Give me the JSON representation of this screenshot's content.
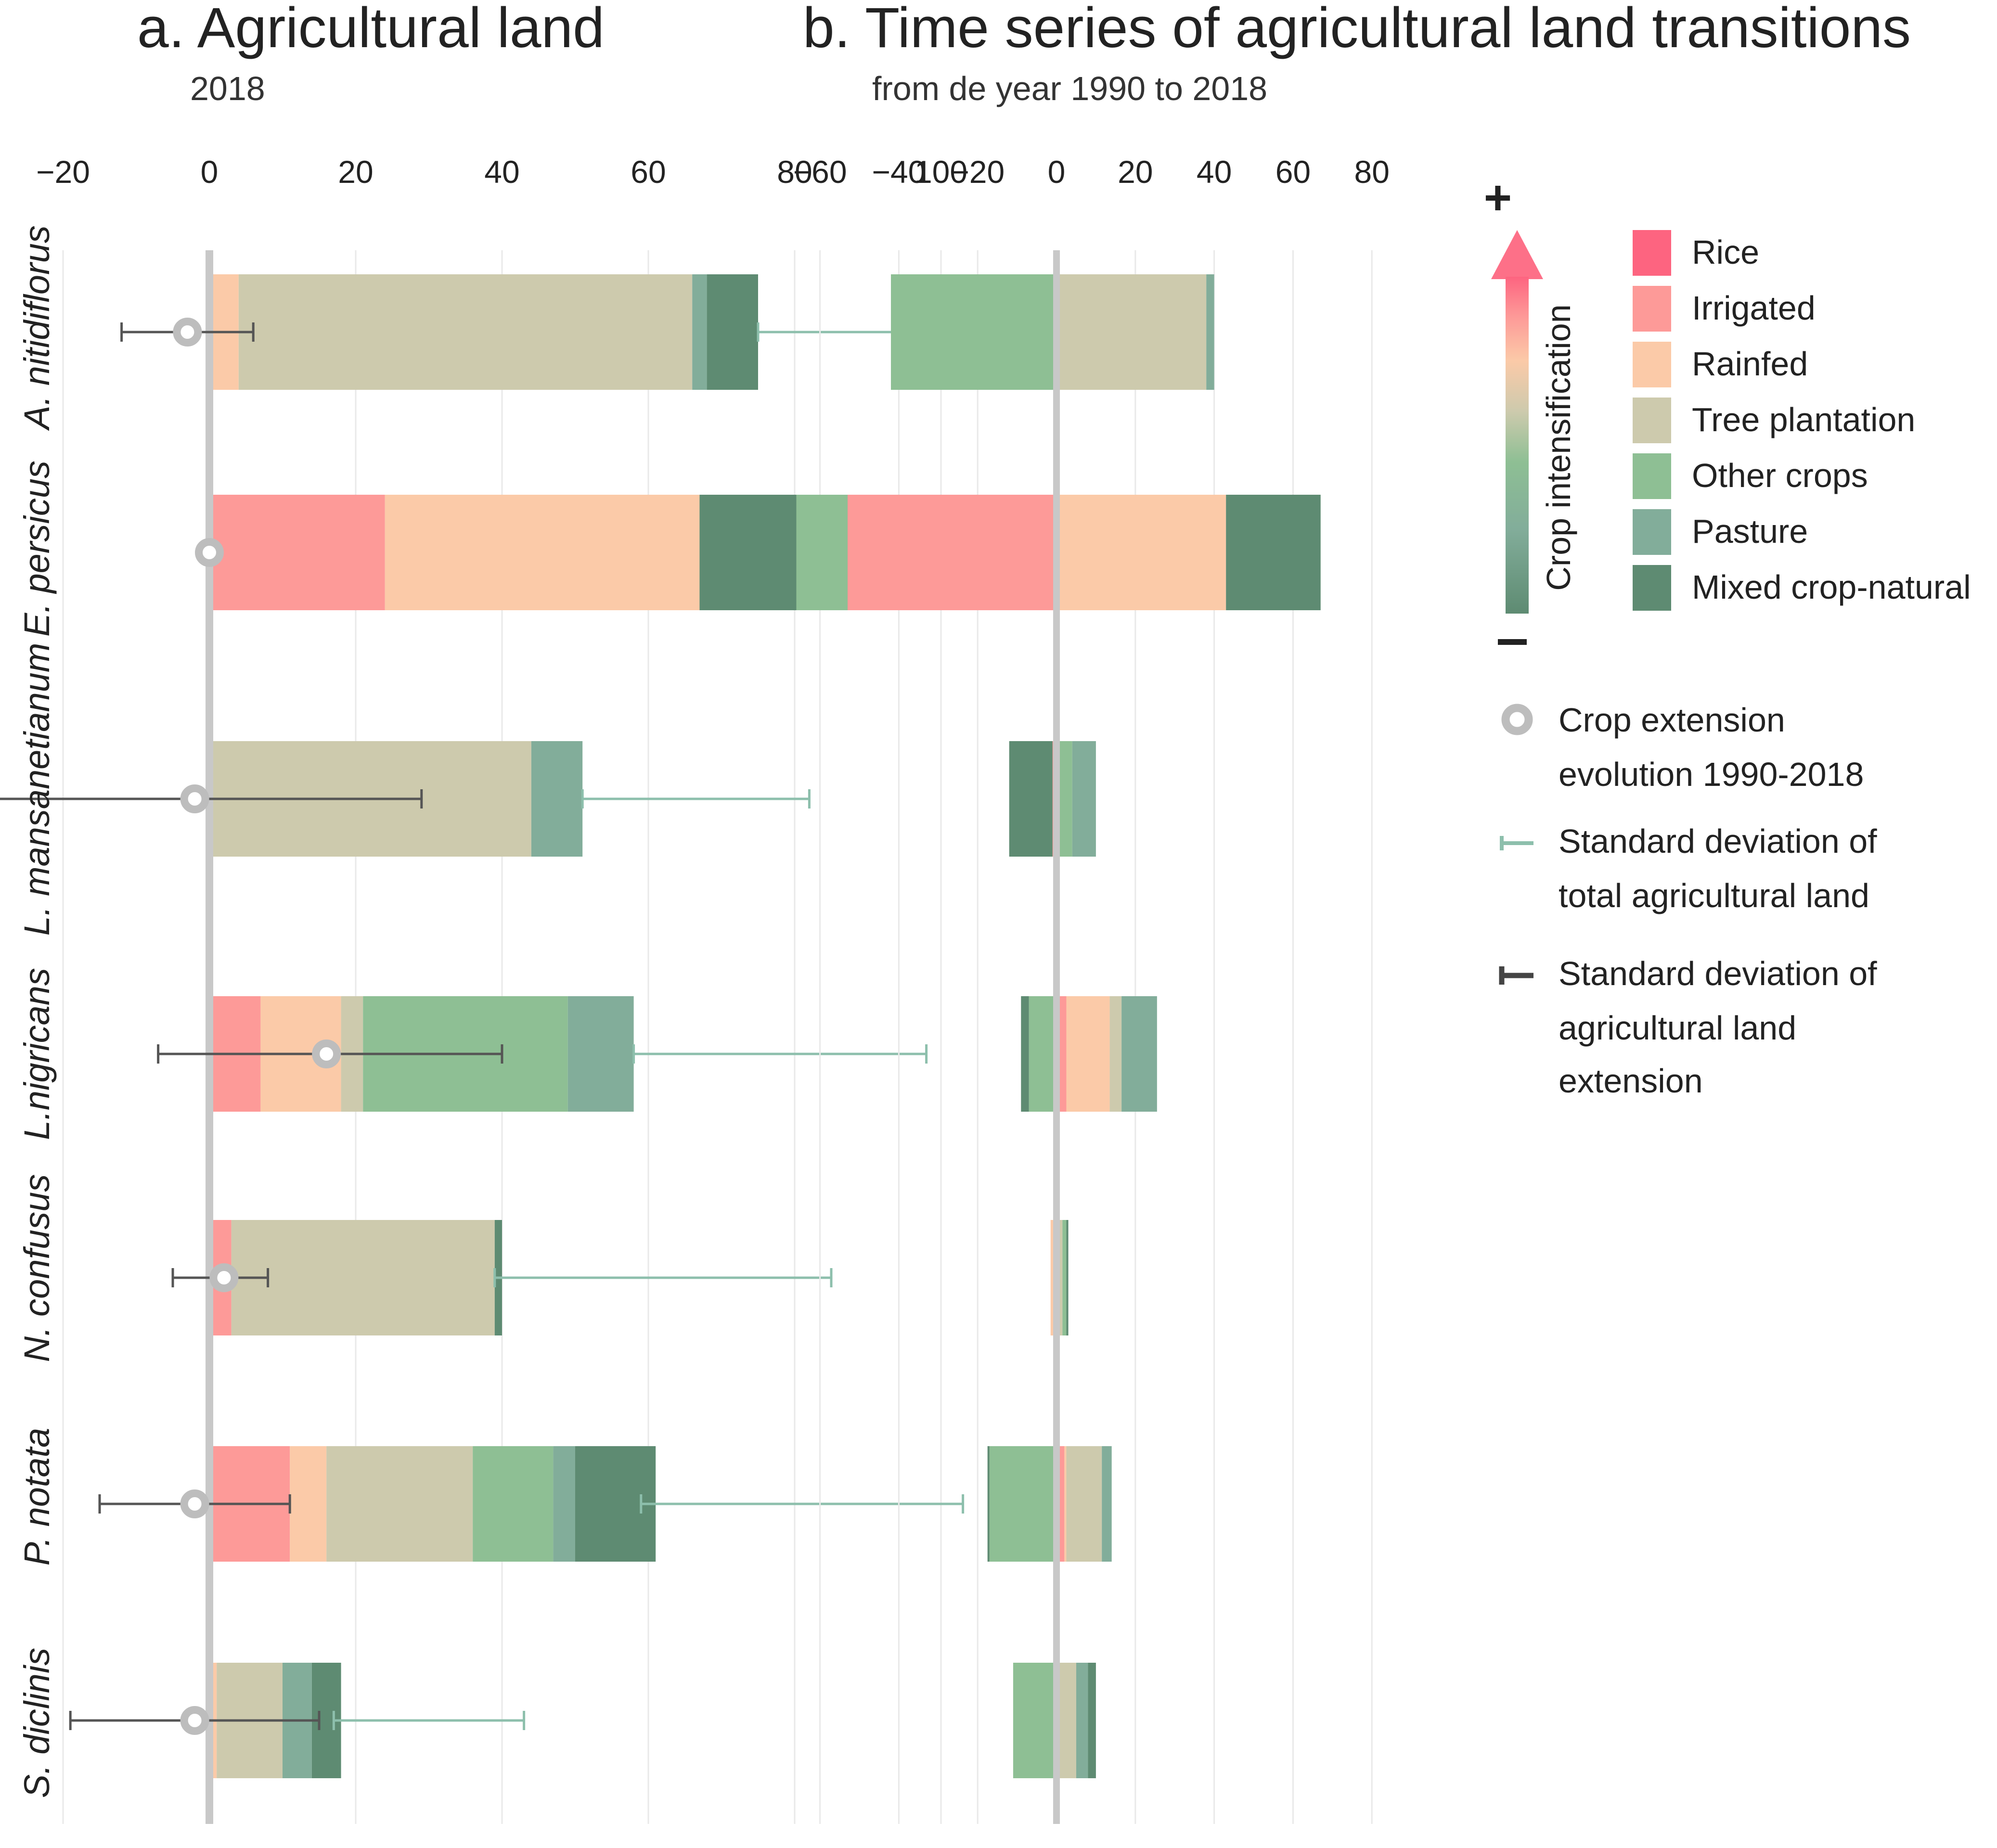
{
  "colors": {
    "Rice": "#fd6480",
    "Irrigated": "#fd9a98",
    "Rainfed": "#fbcaa8",
    "Tree plantation": "#cdcaad",
    "Other crops": "#8ebf94",
    "Pasture": "#82ad9a",
    "Mixed crop-natural": "#5e8b72",
    "axis_zero": "#c8c8c8",
    "grid": "#e9e9e9",
    "sd_total": "#8dbfac",
    "sd_extension": "#555555",
    "circle": "#bdbdbd"
  },
  "chart_data": [
    {
      "type": "bar",
      "stacked": true,
      "orientation": "horizontal",
      "title": "a. Agricultural land",
      "subtitle": "2018",
      "xlim": [
        -22,
        102
      ],
      "xticks": [
        -20,
        0,
        20,
        40,
        60,
        80,
        100
      ],
      "categories": [
        "A. nitidiflorus",
        "E. persicus",
        "L. mansanetianum",
        "L.nigricans",
        "N. confusus",
        "P. notata",
        "S. diclinis"
      ],
      "series": [
        {
          "name": "Rice",
          "values": [
            0,
            0,
            0,
            0,
            0,
            0,
            0.5
          ]
        },
        {
          "name": "Irrigated",
          "values": [
            0,
            24,
            0,
            7,
            3,
            11,
            0
          ]
        },
        {
          "name": "Rainfed",
          "values": [
            4,
            43,
            0,
            11,
            0,
            5,
            0.5
          ]
        },
        {
          "name": "Tree plantation",
          "values": [
            62,
            0,
            44,
            3,
            36,
            20,
            9
          ]
        },
        {
          "name": "Other crops",
          "values": [
            0,
            0,
            0,
            28,
            0,
            11,
            0
          ]
        },
        {
          "name": "Pasture",
          "values": [
            2,
            0,
            7,
            9,
            0,
            3,
            4
          ]
        },
        {
          "name": "Mixed crop-natural",
          "values": [
            7,
            24,
            0,
            0,
            1,
            11,
            4
          ]
        }
      ],
      "crop_extension": [
        -3,
        0,
        -2,
        16,
        2,
        -2,
        -2
      ],
      "sd_extension": [
        [
          -12,
          6
        ],
        null,
        [
          -32,
          29
        ],
        [
          -7,
          40
        ],
        [
          -5,
          8
        ],
        [
          -15,
          11
        ],
        [
          -19,
          15
        ]
      ],
      "sd_total": [
        [
          75,
          101
        ],
        null,
        [
          51,
          82
        ],
        [
          58,
          98
        ],
        [
          39,
          85
        ],
        [
          59,
          103
        ],
        [
          17,
          43
        ]
      ]
    },
    {
      "type": "bar",
      "stacked": true,
      "orientation": "horizontal",
      "title": "b. Time series of agricultural land transitions",
      "subtitle": "from de year 1990 to 2018",
      "xlim": [
        -72,
        84
      ],
      "xticks": [
        -60,
        -40,
        -20,
        0,
        20,
        40,
        60,
        80
      ],
      "categories": [
        "A. nitidiflorus",
        "E. persicus",
        "L. mansanetianum",
        "L.nigricans",
        "N. confusus",
        "P. notata",
        "S. diclinis"
      ],
      "series": [
        {
          "name": "Rice",
          "values": [
            [
              0,
              0
            ],
            [
              0,
              0
            ],
            [
              0,
              0
            ],
            [
              0,
              0
            ],
            [
              0,
              0
            ],
            [
              0,
              0
            ],
            [
              0,
              0
            ]
          ]
        },
        {
          "name": "Irrigated",
          "values": [
            [
              0,
              0
            ],
            [
              -53,
              0
            ],
            [
              -1,
              0
            ],
            [
              0,
              2.5
            ],
            [
              -0.5,
              0.5
            ],
            [
              0,
              2
            ],
            [
              0,
              0
            ]
          ]
        },
        {
          "name": "Rainfed",
          "values": [
            [
              0,
              0
            ],
            [
              0,
              43
            ],
            [
              0,
              0
            ],
            [
              0,
              11
            ],
            [
              -1,
              0
            ],
            [
              0,
              0.5
            ],
            [
              0,
              0
            ]
          ]
        },
        {
          "name": "Tree plantation",
          "values": [
            [
              0,
              38
            ],
            [
              0,
              0
            ],
            [
              0,
              0
            ],
            [
              0,
              3
            ],
            [
              0,
              1
            ],
            [
              0,
              9
            ],
            [
              0,
              5
            ]
          ]
        },
        {
          "name": "Other crops",
          "values": [
            [
              -42,
              0
            ],
            [
              -13,
              0
            ],
            [
              0,
              4
            ],
            [
              -7,
              0
            ],
            [
              0,
              1
            ],
            [
              -17,
              0
            ],
            [
              -11,
              0
            ]
          ]
        },
        {
          "name": "Pasture",
          "values": [
            [
              0,
              2
            ],
            [
              0,
              0
            ],
            [
              0,
              6
            ],
            [
              0,
              9
            ],
            [
              0,
              0
            ],
            [
              0,
              2.5
            ],
            [
              0,
              3
            ]
          ]
        },
        {
          "name": "Mixed crop-natural",
          "values": [
            [
              0,
              0
            ],
            [
              0,
              24
            ],
            [
              -11,
              0
            ],
            [
              -2,
              0
            ],
            [
              0,
              0.5
            ],
            [
              -0.5,
              0
            ],
            [
              0,
              2
            ]
          ]
        }
      ]
    }
  ],
  "legend": {
    "arrow_label": "Crop intensification",
    "plus": "+",
    "minus": "−",
    "items": [
      "Rice",
      "Irrigated",
      "Rainfed",
      "Tree plantation",
      "Other crops",
      "Pasture",
      "Mixed crop-natural"
    ],
    "circle_line1": "Crop extension",
    "circle_line2": "evolution 1990-2018",
    "sd_total_line1": "Standard deviation of",
    "sd_total_line2": "total agricultural land",
    "sd_ext_line1": "Standard deviation of",
    "sd_ext_line2": "agricultural land",
    "sd_ext_line3": "extension"
  }
}
